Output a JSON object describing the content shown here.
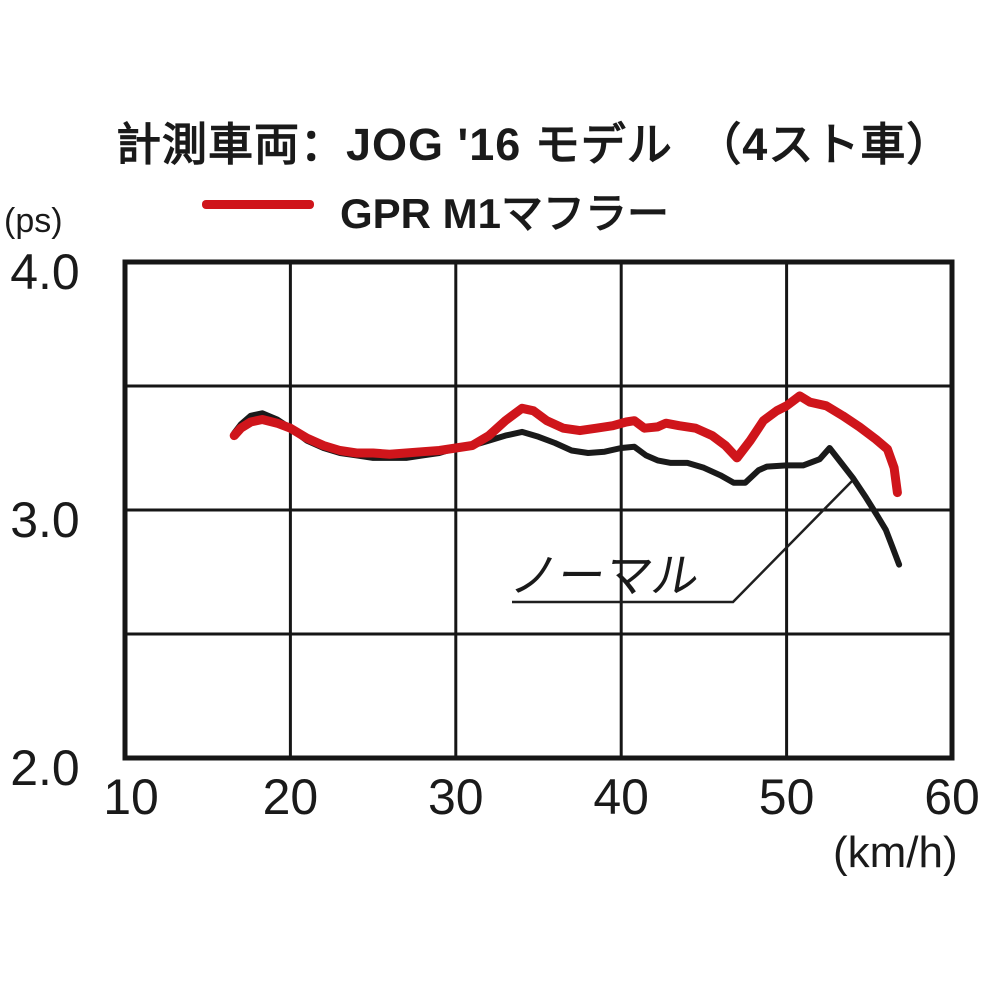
{
  "title": "計測車両：JOG '16 モデル　（4スト車）",
  "legend": {
    "label": "GPR M1マフラー",
    "swatch_color": "#cf151b"
  },
  "axes": {
    "y_unit": "(ps)",
    "x_unit": "(km/h)",
    "x_tick_labels": [
      "10",
      "20",
      "30",
      "40",
      "50",
      "60"
    ],
    "y_tick_labels": [
      "4.0",
      "3.0",
      "2.0"
    ]
  },
  "annotation": {
    "label": "ノーマル"
  },
  "chart_data": {
    "type": "line",
    "title": "計測車両：JOG '16 モデル （4スト車）",
    "xlabel": "(km/h)",
    "ylabel": "(ps)",
    "xlim": [
      10,
      60
    ],
    "ylim": [
      2.0,
      4.0
    ],
    "x_tick_values": [
      10,
      20,
      30,
      40,
      50,
      60
    ],
    "y_tick_values": [
      4.0,
      3.0,
      2.0
    ],
    "y_gridline_values": [
      4.0,
      3.5,
      3.0,
      2.5,
      2.0
    ],
    "grid": true,
    "grid_color": "#161616",
    "legend_position": "top-left",
    "series": [
      {
        "name": "ノーマル",
        "color": "#1a1a1a",
        "width": 6,
        "points": [
          [
            16.6,
            3.31
          ],
          [
            17.0,
            3.345
          ],
          [
            17.6,
            3.38
          ],
          [
            18.3,
            3.39
          ],
          [
            19.2,
            3.365
          ],
          [
            20.0,
            3.33
          ],
          [
            21.0,
            3.28
          ],
          [
            22.0,
            3.25
          ],
          [
            23.0,
            3.23
          ],
          [
            24.0,
            3.22
          ],
          [
            25.0,
            3.21
          ],
          [
            26.0,
            3.21
          ],
          [
            27.0,
            3.21
          ],
          [
            28.0,
            3.22
          ],
          [
            29.0,
            3.23
          ],
          [
            30.0,
            3.25
          ],
          [
            31.0,
            3.26
          ],
          [
            32.0,
            3.28
          ],
          [
            33.0,
            3.3
          ],
          [
            34.0,
            3.315
          ],
          [
            35.0,
            3.295
          ],
          [
            36.0,
            3.27
          ],
          [
            37.0,
            3.24
          ],
          [
            38.0,
            3.23
          ],
          [
            39.0,
            3.235
          ],
          [
            40.0,
            3.25
          ],
          [
            40.8,
            3.255
          ],
          [
            41.5,
            3.22
          ],
          [
            42.2,
            3.2
          ],
          [
            43.0,
            3.19
          ],
          [
            44.0,
            3.19
          ],
          [
            45.0,
            3.17
          ],
          [
            46.0,
            3.14
          ],
          [
            46.8,
            3.11
          ],
          [
            47.5,
            3.11
          ],
          [
            48.3,
            3.16
          ],
          [
            48.8,
            3.175
          ],
          [
            50.0,
            3.18
          ],
          [
            51.0,
            3.18
          ],
          [
            52.0,
            3.205
          ],
          [
            52.6,
            3.25
          ],
          [
            53.3,
            3.19
          ],
          [
            54.0,
            3.13
          ],
          [
            54.8,
            3.05
          ],
          [
            55.5,
            2.975
          ],
          [
            56.0,
            2.92
          ],
          [
            56.4,
            2.85
          ],
          [
            56.8,
            2.78
          ]
        ]
      },
      {
        "name": "GPR M1マフラー",
        "color": "#cf151b",
        "width": 9,
        "points": [
          [
            16.6,
            3.3
          ],
          [
            17.0,
            3.33
          ],
          [
            17.6,
            3.355
          ],
          [
            18.3,
            3.365
          ],
          [
            19.2,
            3.35
          ],
          [
            20.0,
            3.33
          ],
          [
            21.0,
            3.29
          ],
          [
            22.0,
            3.26
          ],
          [
            23.0,
            3.24
          ],
          [
            24.0,
            3.23
          ],
          [
            25.0,
            3.23
          ],
          [
            26.0,
            3.225
          ],
          [
            27.0,
            3.23
          ],
          [
            28.0,
            3.235
          ],
          [
            29.0,
            3.24
          ],
          [
            30.0,
            3.25
          ],
          [
            31.0,
            3.26
          ],
          [
            32.0,
            3.3
          ],
          [
            33.0,
            3.36
          ],
          [
            34.0,
            3.41
          ],
          [
            34.7,
            3.4
          ],
          [
            35.5,
            3.36
          ],
          [
            36.5,
            3.33
          ],
          [
            37.5,
            3.32
          ],
          [
            38.5,
            3.33
          ],
          [
            39.5,
            3.34
          ],
          [
            40.3,
            3.355
          ],
          [
            40.8,
            3.36
          ],
          [
            41.4,
            3.33
          ],
          [
            42.2,
            3.335
          ],
          [
            42.7,
            3.35
          ],
          [
            43.5,
            3.34
          ],
          [
            44.5,
            3.33
          ],
          [
            45.5,
            3.3
          ],
          [
            46.3,
            3.26
          ],
          [
            47.0,
            3.21
          ],
          [
            47.8,
            3.28
          ],
          [
            48.6,
            3.36
          ],
          [
            49.4,
            3.4
          ],
          [
            50.0,
            3.42
          ],
          [
            50.8,
            3.46
          ],
          [
            51.4,
            3.435
          ],
          [
            52.4,
            3.42
          ],
          [
            53.4,
            3.38
          ],
          [
            54.4,
            3.335
          ],
          [
            55.4,
            3.285
          ],
          [
            56.1,
            3.245
          ],
          [
            56.5,
            3.17
          ],
          [
            56.7,
            3.07
          ]
        ]
      }
    ],
    "annotation": {
      "label": "ノーマル",
      "target_series": "ノーマル",
      "target_point": [
        54.0,
        3.12
      ]
    }
  }
}
